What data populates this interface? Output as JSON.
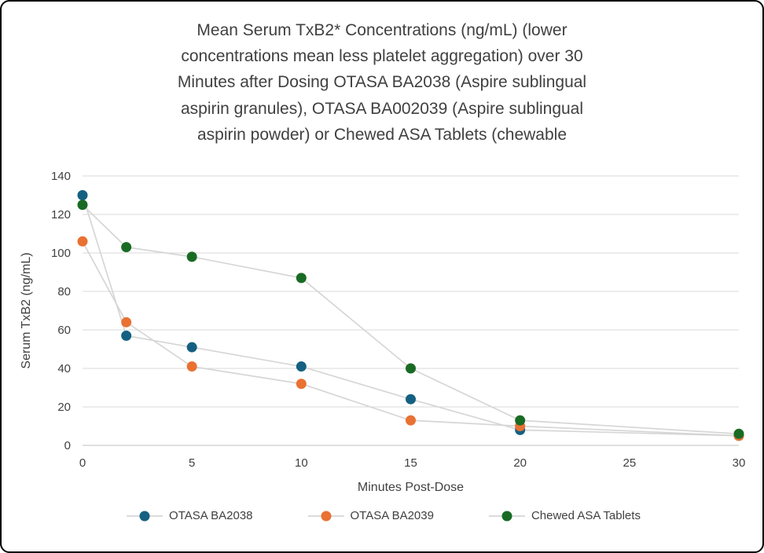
{
  "chart_data": {
    "type": "line",
    "title": "Mean Serum TxB2* Concentrations (ng/mL) (lower concentrations mean less platelet aggregation) over 30 Minutes after Dosing OTASA BA2038 (Aspire sublingual aspirin granules), OTASA BA002039 (Aspire sublingual aspirin powder) or Chewed ASA Tablets (chewable",
    "title_lines": [
      "Mean Serum TxB2* Concentrations (ng/mL) (lower",
      "concentrations mean less platelet aggregation) over 30",
      "Minutes after Dosing OTASA BA2038 (Aspire sublingual",
      "aspirin granules), OTASA BA002039 (Aspire sublingual",
      "aspirin powder) or Chewed ASA Tablets (chewable"
    ],
    "xlabel": "Minutes Post-Dose",
    "ylabel": "Serum TxB2 (ng/mL)",
    "xlim": [
      0,
      30
    ],
    "ylim": [
      0,
      140
    ],
    "x_ticks": [
      0,
      5,
      10,
      15,
      20,
      25,
      30
    ],
    "y_ticks": [
      0,
      20,
      40,
      60,
      80,
      100,
      120,
      140
    ],
    "grid": "horizontal",
    "legend_position": "bottom",
    "line_color": "#d6d6d6",
    "axis_line_color": "#bfbfbf",
    "gridline_color": "#d9d9d9",
    "text_color": "#404040",
    "series": [
      {
        "name": "OTASA BA2038",
        "color": "#156082",
        "x": [
          0,
          2,
          5,
          10,
          15,
          20,
          30
        ],
        "y": [
          130,
          57,
          51,
          41,
          24,
          8,
          5
        ]
      },
      {
        "name": "OTASA BA2039",
        "color": "#e97132",
        "x": [
          0,
          2,
          5,
          10,
          15,
          20,
          30
        ],
        "y": [
          106,
          64,
          41,
          32,
          13,
          10,
          5
        ]
      },
      {
        "name": "Chewed ASA Tablets",
        "color": "#196b24",
        "x": [
          0,
          2,
          5,
          10,
          15,
          20,
          30
        ],
        "y": [
          125,
          103,
          98,
          87,
          40,
          13,
          6
        ]
      }
    ]
  }
}
